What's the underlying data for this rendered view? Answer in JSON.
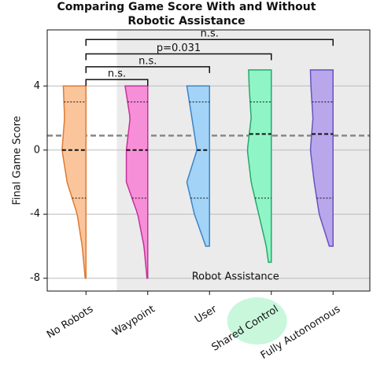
{
  "chart_data": {
    "type": "half-violin",
    "title": [
      "Comparing Game Score With and Without",
      "Robotic Assistance"
    ],
    "y_label": "Final Game Score",
    "categories": [
      "No Robots",
      "Waypoint",
      "User",
      "Shared Control",
      "Fully Autonomous"
    ],
    "highlight": 3,
    "highlight_color": "#c8f7dc",
    "region": {
      "from": 1,
      "label": "Robot Assistance",
      "color": "#ebebeb"
    },
    "reference_line": 0.9,
    "ylim": [
      -8.8,
      7.5
    ],
    "yticks": [
      4,
      0,
      -4,
      -8
    ],
    "grid": true,
    "profile_levels": [
      5,
      4,
      2,
      0,
      -2,
      -4,
      -6,
      -8
    ],
    "series": [
      {
        "name": "No Robots",
        "color": "#fbc59c",
        "edge": "#e07a30",
        "min": -8,
        "q1": -3,
        "median": 0,
        "q3": 3,
        "max": 4,
        "profile": [
          0.9,
          0.9,
          0.85,
          0.95,
          0.75,
          0.35,
          0.15,
          0.03
        ]
      },
      {
        "name": "Waypoint",
        "color": "#f78fd8",
        "edge": "#c2349a",
        "min": -8,
        "q1": -3,
        "median": 0,
        "q3": 3,
        "max": 4,
        "profile": [
          0.9,
          0.9,
          0.7,
          0.85,
          0.85,
          0.4,
          0.15,
          0.03
        ]
      },
      {
        "name": "User",
        "color": "#a3d3f7",
        "edge": "#3d84c6",
        "min": -6,
        "q1": -3,
        "median": 0,
        "q3": 3,
        "max": 4,
        "profile": [
          0.9,
          0.9,
          0.7,
          0.5,
          0.9,
          0.6,
          0.15,
          0.03
        ]
      },
      {
        "name": "Shared Control",
        "color": "#90f5c6",
        "edge": "#27a86b",
        "min": -7,
        "q1": -3,
        "median": 1,
        "q3": 3,
        "max": 5,
        "profile": [
          0.9,
          0.88,
          0.8,
          0.95,
          0.8,
          0.5,
          0.2,
          0.03
        ]
      },
      {
        "name": "Fully Autonomous",
        "color": "#b9a7ec",
        "edge": "#6a52c0",
        "min": -6,
        "q1": -3,
        "median": 1,
        "q3": 3,
        "max": 5,
        "profile": [
          0.9,
          0.88,
          0.8,
          0.9,
          0.75,
          0.55,
          0.15,
          0.03
        ]
      }
    ],
    "annotations": [
      {
        "from": 0,
        "to": 1,
        "y": 4.4,
        "label": "n.s."
      },
      {
        "from": 0,
        "to": 2,
        "y": 5.2,
        "label": "n.s."
      },
      {
        "from": 0,
        "to": 3,
        "y": 6.0,
        "label": "p=0.031"
      },
      {
        "from": 0,
        "to": 4,
        "y": 6.9,
        "label": "n.s."
      }
    ]
  }
}
